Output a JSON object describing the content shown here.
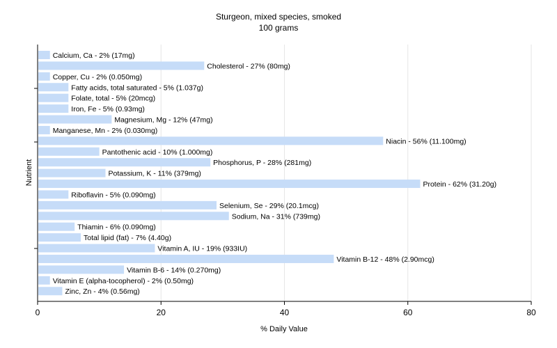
{
  "chart_data": {
    "type": "bar",
    "orientation": "horizontal",
    "title": "Sturgeon, mixed species, smoked",
    "subtitle": "100 grams",
    "xlabel": "% Daily Value",
    "ylabel": "Nutrient",
    "xlim": [
      0,
      80
    ],
    "xticks": [
      0,
      20,
      40,
      60,
      80
    ],
    "grid": true,
    "bar_color": "#c6dcf8",
    "categories": [
      "Calcium, Ca",
      "Cholesterol",
      "Copper, Cu",
      "Fatty acids, total saturated",
      "Folate, total",
      "Iron, Fe",
      "Magnesium, Mg",
      "Manganese, Mn",
      "Niacin",
      "Pantothenic acid",
      "Phosphorus, P",
      "Potassium, K",
      "Protein",
      "Riboflavin",
      "Selenium, Se",
      "Sodium, Na",
      "Thiamin",
      "Total lipid (fat)",
      "Vitamin A, IU",
      "Vitamin B-12",
      "Vitamin B-6",
      "Vitamin E (alpha-tocopherol)",
      "Zinc, Zn"
    ],
    "values": [
      2,
      27,
      2,
      5,
      5,
      5,
      12,
      2,
      56,
      10,
      28,
      11,
      62,
      5,
      29,
      31,
      6,
      7,
      19,
      48,
      14,
      2,
      4
    ],
    "labels": [
      "Calcium, Ca - 2% (17mg)",
      "Cholesterol - 27% (80mg)",
      "Copper, Cu - 2% (0.050mg)",
      "Fatty acids, total saturated - 5% (1.037g)",
      "Folate, total - 5% (20mcg)",
      "Iron, Fe - 5% (0.93mg)",
      "Magnesium, Mg - 12% (47mg)",
      "Manganese, Mn - 2% (0.030mg)",
      "Niacin - 56% (11.100mg)",
      "Pantothenic acid - 10% (1.000mg)",
      "Phosphorus, P - 28% (281mg)",
      "Potassium, K - 11% (379mg)",
      "Protein - 62% (31.20g)",
      "Riboflavin - 5% (0.090mg)",
      "Selenium, Se - 29% (20.1mcg)",
      "Sodium, Na - 31% (739mg)",
      "Thiamin - 6% (0.090mg)",
      "Total lipid (fat) - 7% (4.40g)",
      "Vitamin A, IU - 19% (933IU)",
      "Vitamin B-12 - 48% (2.90mcg)",
      "Vitamin B-6 - 14% (0.270mg)",
      "Vitamin E (alpha-tocopherol) - 2% (0.50mg)",
      "Zinc, Zn - 4% (0.56mg)"
    ]
  }
}
